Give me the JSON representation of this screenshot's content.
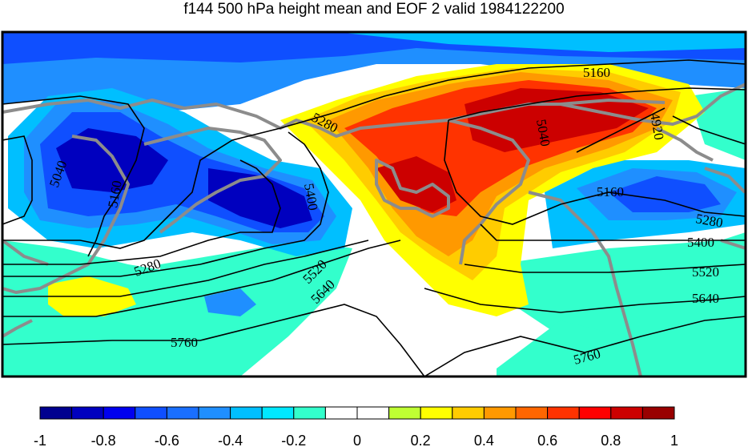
{
  "title": "f144 500 hPa height mean and EOF 2 valid 1984122200",
  "colorbar": {
    "colors": [
      "#00008f",
      "#0000bf",
      "#0000ef",
      "#0f4fff",
      "#1a6fff",
      "#1f8fff",
      "#00bfff",
      "#00e8ff",
      "#33ffcc",
      "#ffffff",
      "#ffffff",
      "#bfff33",
      "#ffff00",
      "#ffcc00",
      "#ff9900",
      "#ff6600",
      "#ff3300",
      "#ff0000",
      "#cc0000",
      "#990000"
    ],
    "tick_labels": [
      "-1",
      "-0.8",
      "-0.6",
      "-0.4",
      "-0.2",
      "0",
      "0.2",
      "0.4",
      "0.6",
      "0.8",
      "1"
    ]
  },
  "contour_labels": [
    "5160",
    "5280",
    "5040",
    "4920",
    "5040",
    "5160",
    "5400",
    "5160",
    "5280",
    "5400",
    "5280",
    "5520",
    "5640",
    "5520",
    "5640",
    "5760",
    "5760"
  ],
  "palette": {
    "coast": "#8c8c8c",
    "contour": "#000000"
  }
}
